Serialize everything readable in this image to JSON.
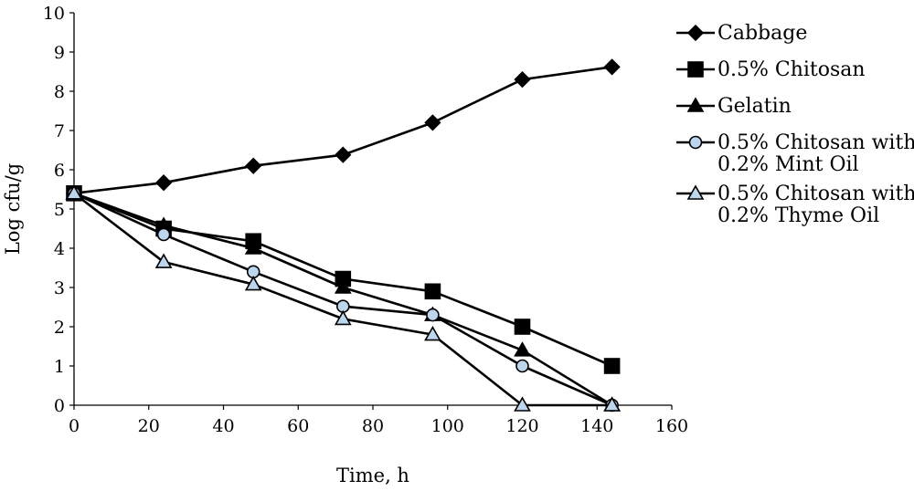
{
  "chart_data": {
    "type": "line",
    "title": "",
    "xlabel": "Time, h",
    "ylabel": "Log cfu/g",
    "xlim": [
      0,
      160
    ],
    "ylim": [
      0,
      10
    ],
    "xticks": [
      "0",
      "20",
      "40",
      "60",
      "80",
      "100",
      "120",
      "140",
      "160"
    ],
    "yticks": [
      "0",
      "1",
      "2",
      "3",
      "4",
      "5",
      "6",
      "7",
      "8",
      "9",
      "10"
    ],
    "grid": false,
    "legend_position": "right",
    "series": [
      {
        "name": "Cabbage",
        "marker": "diamond",
        "legend_lines": [
          "Cabbage"
        ],
        "points": [
          [
            0,
            5.4
          ],
          [
            24,
            5.67
          ],
          [
            48,
            6.1
          ],
          [
            72,
            6.38
          ],
          [
            96,
            7.2
          ],
          [
            120,
            8.3
          ],
          [
            144,
            8.62
          ]
        ]
      },
      {
        "name": "0.5% Chitosan",
        "marker": "square",
        "legend_lines": [
          "0.5% Chitosan"
        ],
        "points": [
          [
            0,
            5.4
          ],
          [
            24,
            4.5
          ],
          [
            48,
            4.18
          ],
          [
            72,
            3.22
          ],
          [
            96,
            2.9
          ],
          [
            120,
            2.0
          ],
          [
            144,
            1.0
          ]
        ]
      },
      {
        "name": "Gelatin",
        "marker": "triangle",
        "legend_lines": [
          "Gelatin"
        ],
        "points": [
          [
            0,
            5.4
          ],
          [
            24,
            4.58
          ],
          [
            48,
            4.0
          ],
          [
            72,
            3.0
          ],
          [
            96,
            2.3
          ],
          [
            120,
            1.4
          ],
          [
            144,
            0
          ]
        ]
      },
      {
        "name": "0.5% Chitosan with 0.2% Mint Oil",
        "marker": "circle-open",
        "legend_lines": [
          "0.5% Chitosan with",
          "0.2% Mint Oil"
        ],
        "points": [
          [
            0,
            5.4
          ],
          [
            24,
            4.35
          ],
          [
            48,
            3.4
          ],
          [
            72,
            2.52
          ],
          [
            96,
            2.3
          ],
          [
            120,
            1.0
          ],
          [
            144,
            0
          ]
        ]
      },
      {
        "name": "0.5% Chitosan with 0.2% Thyme Oil",
        "marker": "triangle-open",
        "legend_lines": [
          "0.5% Chitosan with",
          "0.2% Thyme Oil"
        ],
        "points": [
          [
            0,
            5.4
          ],
          [
            24,
            3.65
          ],
          [
            48,
            3.08
          ],
          [
            72,
            2.2
          ],
          [
            96,
            1.8
          ],
          [
            120,
            0
          ],
          [
            144,
            0
          ]
        ]
      }
    ],
    "colors": {
      "line": "#000000",
      "open_marker_fill": "#bcd6ee"
    }
  }
}
